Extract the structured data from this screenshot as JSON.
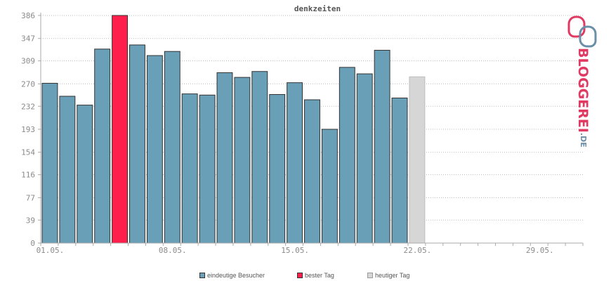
{
  "chart_data": {
    "type": "bar",
    "title": "denkzeiten",
    "categories": [
      "01.05.",
      "02.05.",
      "03.05.",
      "04.05.",
      "05.05.",
      "06.05.",
      "07.05.",
      "08.05.",
      "09.05.",
      "10.05.",
      "11.05.",
      "12.05.",
      "13.05.",
      "14.05.",
      "15.05.",
      "16.05.",
      "17.05.",
      "18.05.",
      "19.05.",
      "20.05.",
      "21.05.",
      "22.05."
    ],
    "x_tick_labels": [
      "01.05.",
      "08.05.",
      "15.05.",
      "22.05.",
      "29.05."
    ],
    "x_range_days": 31,
    "series": [
      {
        "name": "eindeutige Besucher",
        "color": "#6a9fb8",
        "values": [
          271,
          249,
          234,
          329,
          386,
          336,
          318,
          325,
          253,
          251,
          289,
          281,
          291,
          252,
          272,
          243,
          193,
          298,
          287,
          327,
          246,
          282
        ]
      }
    ],
    "best_day_index": 4,
    "today_index": 21,
    "colors": {
      "normal": "#6a9fb8",
      "best": "#ff1f4d",
      "today": "#d6d6d6",
      "bar_outline": "#333333",
      "today_outline": "#bdbdbd",
      "grid": "#bbbbbb",
      "axis": "#aaaaaa"
    },
    "y_ticks": [
      0,
      39,
      77,
      116,
      154,
      193,
      232,
      270,
      309,
      347,
      386
    ],
    "ylim": [
      0,
      386
    ],
    "grid": true,
    "legend_position": "bottom-center"
  },
  "legend": {
    "visitors": "eindeutige Besucher",
    "best": "bester Tag",
    "today": "heutiger Tag"
  },
  "logo": {
    "brand": "BLOGGEREI",
    "tld": ".DE",
    "icon": "bloggerei-logo-icon"
  }
}
